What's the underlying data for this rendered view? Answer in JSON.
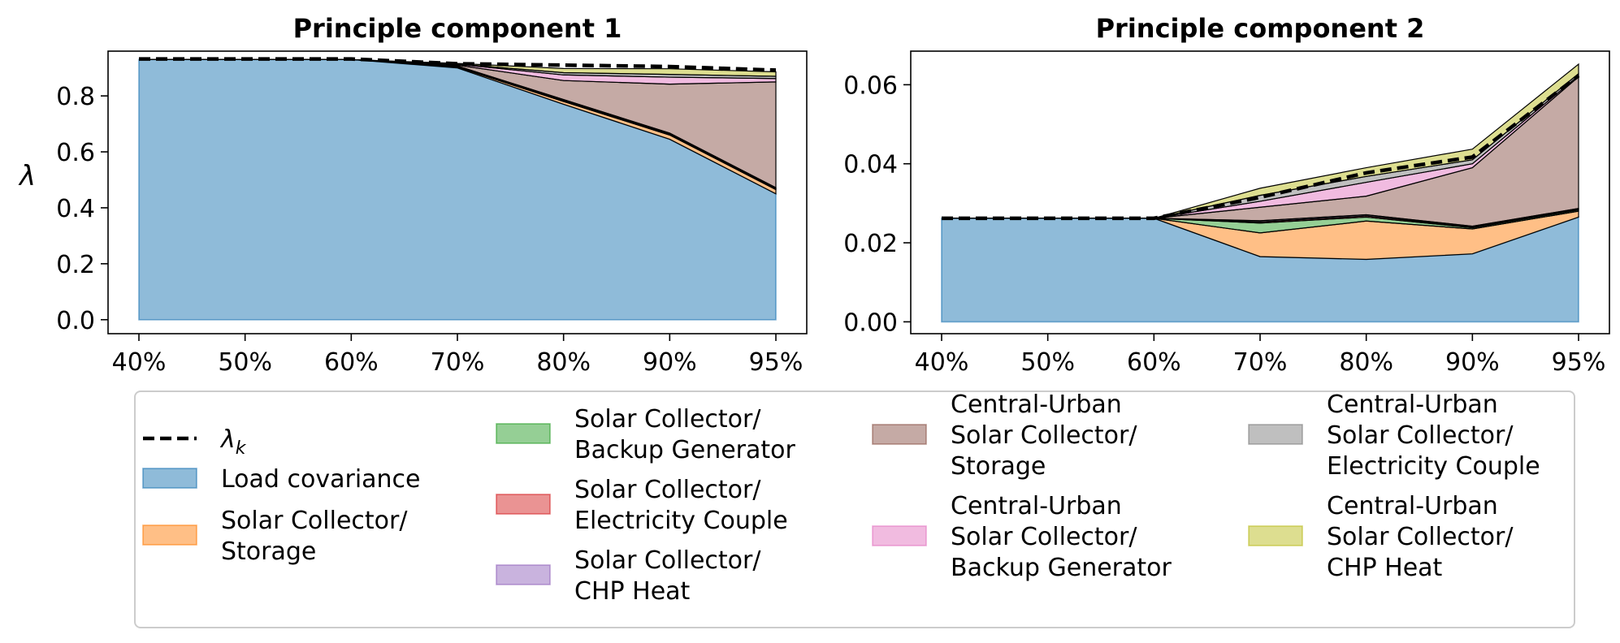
{
  "chart_data": [
    {
      "type": "area",
      "stacked": true,
      "title": "Principle component 1",
      "xlabel": "",
      "ylabel": "λ",
      "x": [
        "40%",
        "50%",
        "60%",
        "70%",
        "80%",
        "90%",
        "95%"
      ],
      "ylim": [
        -0.05,
        0.96
      ],
      "yticks": [
        "0.0",
        "0.2",
        "0.4",
        "0.6",
        "0.8"
      ],
      "ytick_values": [
        0.0,
        0.2,
        0.4,
        0.6,
        0.8
      ],
      "series": [
        {
          "name": "Load covariance",
          "values": [
            0.93,
            0.93,
            0.93,
            0.9,
            0.77,
            0.645,
            0.45
          ]
        },
        {
          "name": "Solar Collector/ Storage",
          "values": [
            0,
            0,
            0,
            0.003,
            0.01,
            0.015,
            0.015
          ]
        },
        {
          "name": "Solar Collector/ Backup Generator",
          "values": [
            0,
            0,
            0,
            0.002,
            0.003,
            0.003,
            0.003
          ]
        },
        {
          "name": "Solar Collector/ Electricity Couple",
          "values": [
            0,
            0,
            0,
            0.001,
            0.002,
            0.002,
            0.002
          ]
        },
        {
          "name": "Solar Collector/ CHP Heat",
          "values": [
            0,
            0,
            0,
            0.001,
            0.002,
            0.002,
            0.002
          ]
        },
        {
          "name": "Central-Urban Solar Collector/ Storage",
          "values": [
            0,
            0,
            0,
            0.003,
            0.068,
            0.175,
            0.378
          ]
        },
        {
          "name": "Central-Urban Solar Collector/ Backup Generator",
          "values": [
            0,
            0,
            0,
            0.003,
            0.02,
            0.025,
            0.012
          ]
        },
        {
          "name": "Central-Urban Solar Collector/ Electricity Couple",
          "values": [
            0,
            0,
            0,
            0.001,
            0.008,
            0.01,
            0.008
          ]
        },
        {
          "name": "Central-Urban Solar Collector/ CHP Heat",
          "values": [
            0,
            0,
            0,
            0.002,
            0.015,
            0.02,
            0.016
          ]
        }
      ],
      "lambda_k": [
        0.932,
        0.932,
        0.932,
        0.915,
        0.91,
        0.905,
        0.892
      ]
    },
    {
      "type": "area",
      "stacked": true,
      "title": "Principle component 2",
      "xlabel": "",
      "ylabel": "",
      "x": [
        "40%",
        "50%",
        "60%",
        "70%",
        "80%",
        "90%",
        "95%"
      ],
      "ylim": [
        -0.003,
        0.0685
      ],
      "yticks": [
        "0.00",
        "0.02",
        "0.04",
        "0.06"
      ],
      "ytick_values": [
        0.0,
        0.02,
        0.04,
        0.06
      ],
      "series": [
        {
          "name": "Load covariance",
          "values": [
            0.0262,
            0.0262,
            0.0262,
            0.0165,
            0.0158,
            0.0172,
            0.0265
          ]
        },
        {
          "name": "Solar Collector/ Storage",
          "values": [
            0,
            0,
            0,
            0.006,
            0.0097,
            0.0063,
            0.0015
          ]
        },
        {
          "name": "Solar Collector/ Backup Generator",
          "values": [
            0,
            0,
            0,
            0.0025,
            0.001,
            0.0003,
            0.0003
          ]
        },
        {
          "name": "Solar Collector/ Electricity Couple",
          "values": [
            0,
            0,
            0,
            0.0003,
            0.0003,
            0.0002,
            0.0002
          ]
        },
        {
          "name": "Solar Collector/ CHP Heat",
          "values": [
            0,
            0,
            0,
            0.0003,
            0.0003,
            0.0002,
            0.0002
          ]
        },
        {
          "name": "Central-Urban Solar Collector/ Storage",
          "values": [
            0,
            0,
            0,
            0.0034,
            0.0047,
            0.0148,
            0.0333
          ]
        },
        {
          "name": "Central-Urban Solar Collector/ Backup Generator",
          "values": [
            0,
            0,
            0,
            0.0015,
            0.0035,
            0.001,
            0.0003
          ]
        },
        {
          "name": "Central-Urban Solar Collector/ Electricity Couple",
          "values": [
            0,
            0,
            0,
            0.0015,
            0.0015,
            0.001,
            0.0005
          ]
        },
        {
          "name": "Central-Urban Solar Collector/ CHP Heat",
          "values": [
            0,
            0,
            0,
            0.0018,
            0.0022,
            0.0027,
            0.0024
          ]
        }
      ],
      "lambda_k": [
        0.0262,
        0.0262,
        0.0262,
        0.0315,
        0.0377,
        0.0417,
        0.0623
      ]
    }
  ],
  "legend": {
    "placement": "bottom",
    "entries": [
      {
        "lines": [
          "λ",
          "k"
        ],
        "kind": "dashed-line",
        "color": "#000000"
      },
      {
        "lines": [
          "Load covariance"
        ],
        "kind": "patch",
        "color": "#1f77b4"
      },
      {
        "lines": [
          "Solar Collector/",
          "Storage"
        ],
        "kind": "patch",
        "color": "#ff7f0e"
      },
      {
        "lines": [
          "Solar Collector/",
          "Backup Generator"
        ],
        "kind": "patch",
        "color": "#2ca02c"
      },
      {
        "lines": [
          "Solar Collector/",
          "Electricity Couple"
        ],
        "kind": "patch",
        "color": "#d62728"
      },
      {
        "lines": [
          "Solar Collector/",
          "CHP Heat"
        ],
        "kind": "patch",
        "color": "#9467bd"
      },
      {
        "lines": [
          "Central-Urban",
          "Solar Collector/",
          "Storage"
        ],
        "kind": "patch",
        "color": "#8c564b"
      },
      {
        "lines": [
          "Central-Urban",
          "Solar Collector/",
          "Backup Generator"
        ],
        "kind": "patch",
        "color": "#e377c2"
      },
      {
        "lines": [
          "Central-Urban",
          "Solar Collector/",
          "Electricity Couple"
        ],
        "kind": "patch",
        "color": "#7f7f7f"
      },
      {
        "lines": [
          "Central-Urban",
          "Solar Collector/",
          "CHP Heat"
        ],
        "kind": "patch",
        "color": "#bcbd22"
      }
    ]
  }
}
